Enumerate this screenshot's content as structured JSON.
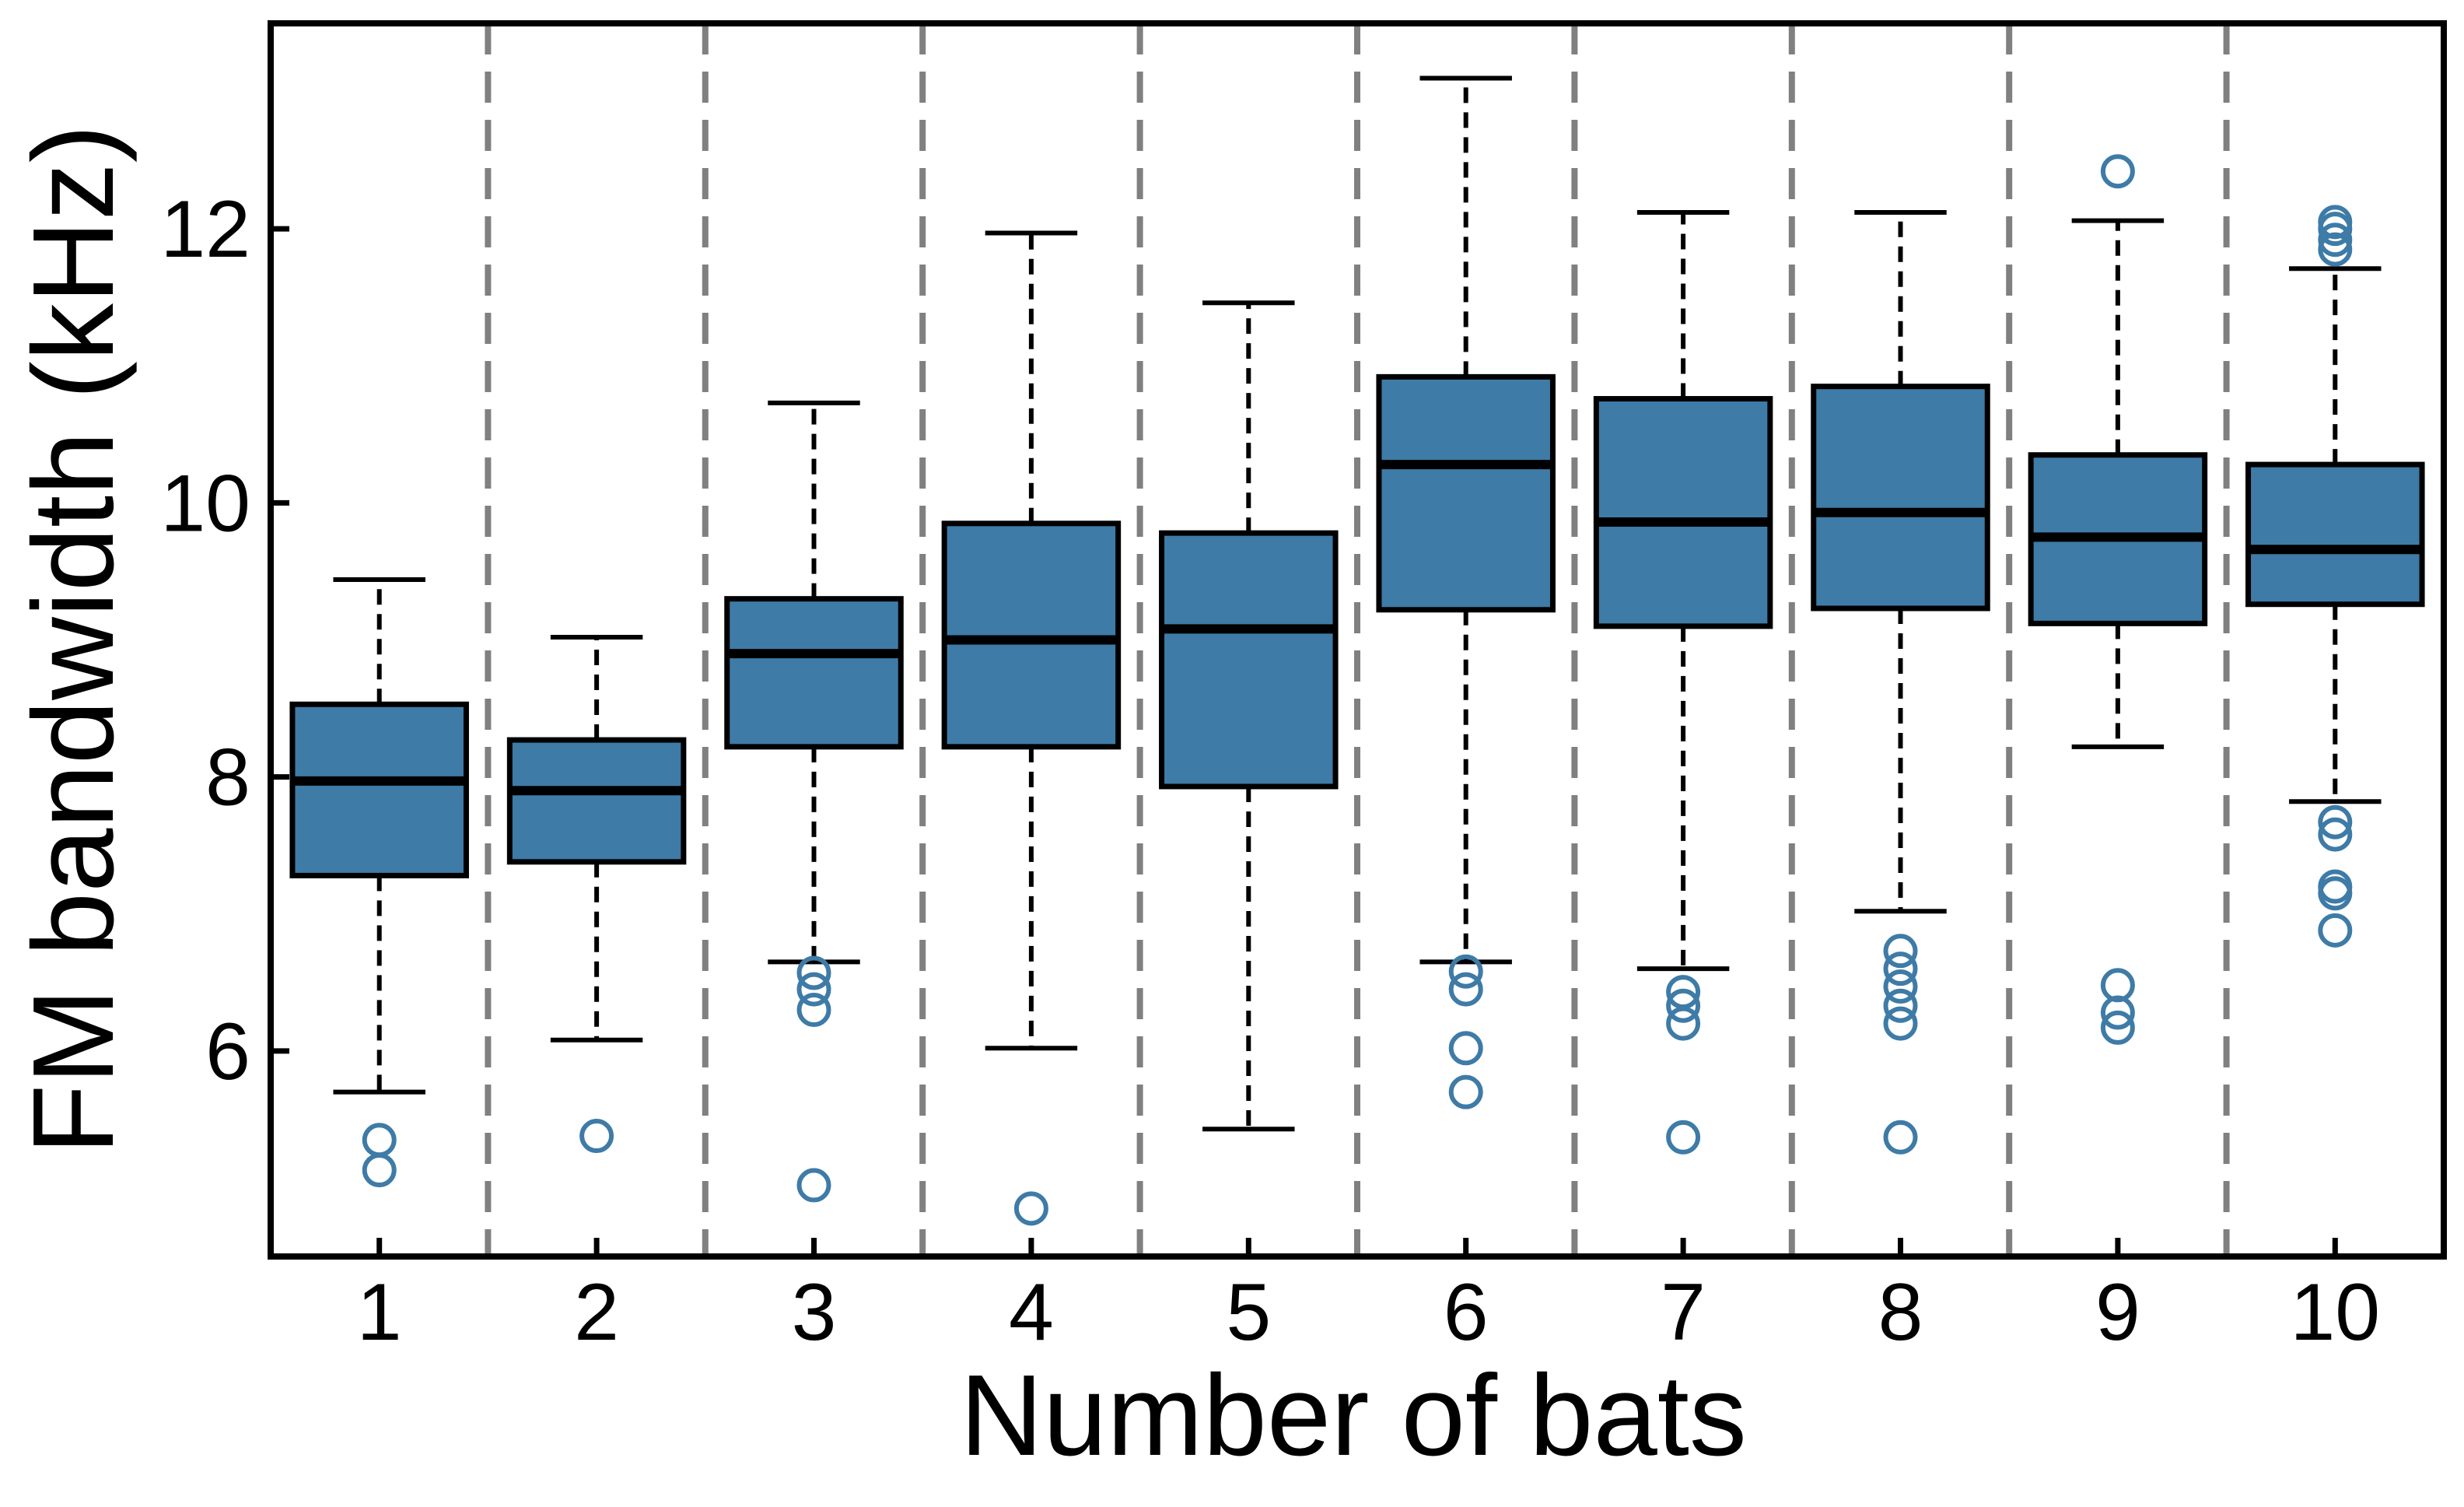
{
  "chart_data": {
    "type": "box",
    "title": "",
    "xlabel": "Number of bats",
    "ylabel": "FM bandwidth (kHz)",
    "categories": [
      "1",
      "2",
      "3",
      "4",
      "5",
      "6",
      "7",
      "8",
      "9",
      "10"
    ],
    "ylim": [
      4.5,
      13.5
    ],
    "yticks": [
      6,
      8,
      10,
      12
    ],
    "grid": false,
    "separators": "dashed vertical lines between groups",
    "box_color": "#3e7ba7",
    "outlier_color": "#3e7ba7",
    "separator_color": "#808080",
    "boxes": [
      {
        "category": "1",
        "whisker_low": 5.7,
        "q1": 7.28,
        "median": 7.97,
        "q3": 8.53,
        "whisker_high": 9.44,
        "outliers": [
          5.35,
          5.13
        ]
      },
      {
        "category": "2",
        "whisker_low": 6.08,
        "q1": 7.38,
        "median": 7.9,
        "q3": 8.27,
        "whisker_high": 9.02,
        "outliers": [
          5.38
        ]
      },
      {
        "category": "3",
        "whisker_low": 6.65,
        "q1": 8.22,
        "median": 8.9,
        "q3": 9.3,
        "whisker_high": 10.73,
        "outliers": [
          6.57,
          6.45,
          6.3,
          5.02
        ]
      },
      {
        "category": "4",
        "whisker_low": 6.02,
        "q1": 8.22,
        "median": 9.0,
        "q3": 9.85,
        "whisker_high": 11.97,
        "outliers": [
          4.85
        ]
      },
      {
        "category": "5",
        "whisker_low": 5.43,
        "q1": 7.93,
        "median": 9.08,
        "q3": 9.78,
        "whisker_high": 11.46,
        "outliers": []
      },
      {
        "category": "6",
        "whisker_low": 6.65,
        "q1": 9.22,
        "median": 10.28,
        "q3": 10.92,
        "whisker_high": 13.1,
        "outliers": [
          6.58,
          6.45,
          6.02,
          5.7
        ]
      },
      {
        "category": "7",
        "whisker_low": 6.6,
        "q1": 9.1,
        "median": 9.86,
        "q3": 10.76,
        "whisker_high": 12.12,
        "outliers": [
          6.43,
          6.33,
          6.2,
          5.37
        ]
      },
      {
        "category": "8",
        "whisker_low": 7.02,
        "q1": 9.23,
        "median": 9.93,
        "q3": 10.85,
        "whisker_high": 12.12,
        "outliers": [
          6.73,
          6.6,
          6.47,
          6.33,
          6.2,
          5.37
        ]
      },
      {
        "category": "9",
        "whisker_low": 8.22,
        "q1": 9.12,
        "median": 9.75,
        "q3": 10.35,
        "whisker_high": 12.06,
        "outliers": [
          12.42,
          6.48,
          6.28,
          6.17
        ]
      },
      {
        "category": "10",
        "whisker_low": 7.82,
        "q1": 9.26,
        "median": 9.66,
        "q3": 10.28,
        "whisker_high": 11.71,
        "outliers": [
          12.05,
          12.0,
          11.92,
          11.85,
          7.67,
          7.58,
          7.2,
          7.15,
          6.88
        ]
      }
    ]
  }
}
